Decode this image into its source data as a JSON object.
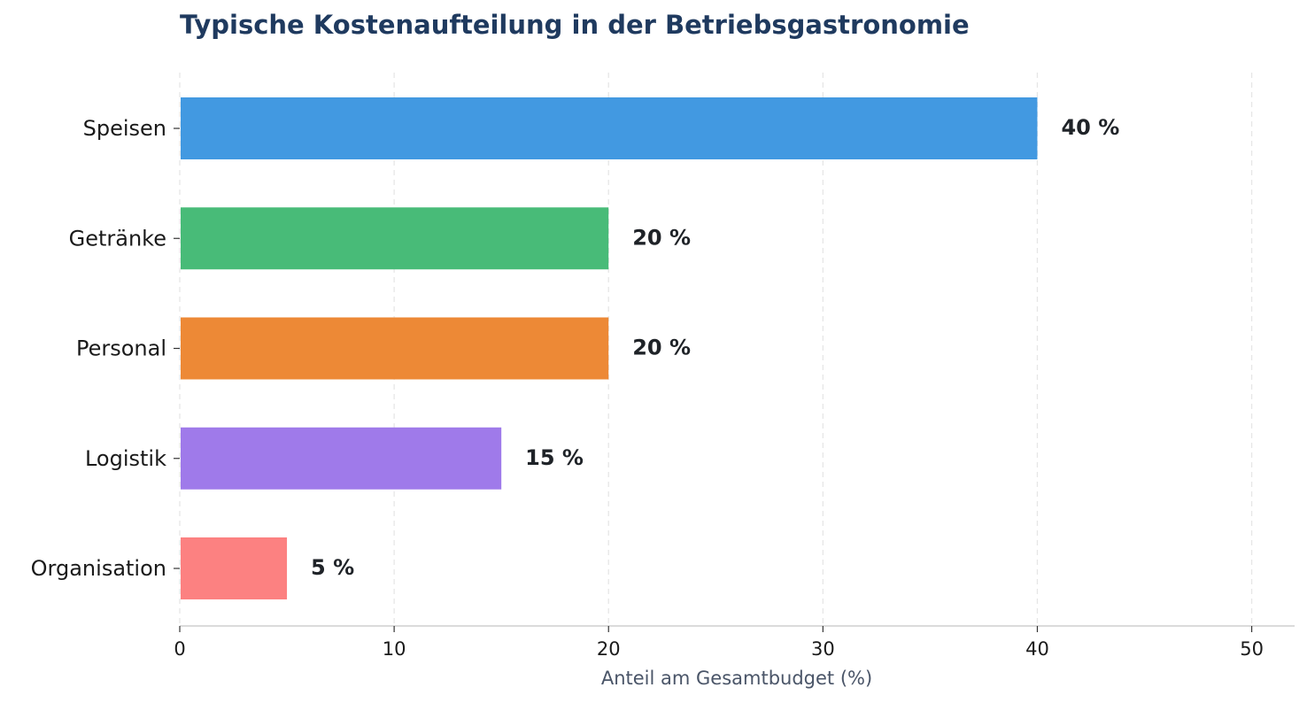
{
  "chart_data": {
    "type": "bar",
    "orientation": "horizontal",
    "title": "Typische Kostenaufteilung in der Betriebsgastronomie",
    "xlabel": "Anteil am Gesamtbudget (%)",
    "ylabel": "",
    "xlim": [
      0,
      52
    ],
    "xticks": [
      0,
      10,
      20,
      30,
      40,
      50
    ],
    "grid": "x-dashed",
    "categories": [
      "Speisen",
      "Getränke",
      "Personal",
      "Logistik",
      "Organisation"
    ],
    "values": [
      40,
      20,
      20,
      15,
      5
    ],
    "value_labels": [
      "40 %",
      "20 %",
      "20 %",
      "15 %",
      "5 %"
    ],
    "colors": [
      "#4299e1",
      "#48bb78",
      "#ed8936",
      "#9f7aea",
      "#fc8181"
    ]
  }
}
